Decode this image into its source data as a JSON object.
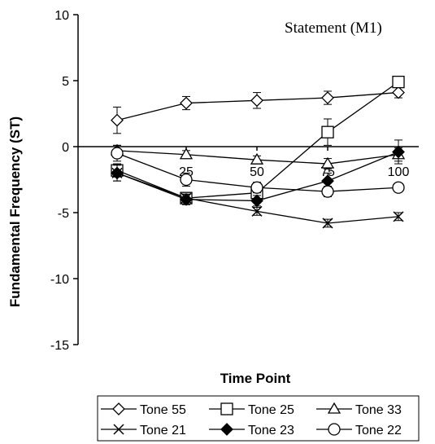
{
  "chart_data": {
    "type": "line",
    "annotation": "Statement (M1)",
    "xlabel": "Time Point",
    "ylabel": "Fundamental Frequency (ST)",
    "x": [
      0,
      25,
      50,
      75,
      100
    ],
    "x_tick_labels": [
      "25",
      "50",
      "75",
      "100"
    ],
    "x_tick_values": [
      25,
      50,
      75,
      100
    ],
    "ylim": [
      -15,
      10
    ],
    "y_ticks": [
      10,
      5,
      0,
      -5,
      -10,
      -15
    ],
    "y_tick_labels": [
      "10",
      "5",
      "0",
      "-5",
      "-10",
      "-15"
    ],
    "grid": false,
    "error_bars": true,
    "legend_position": "bottom",
    "series": [
      {
        "name": "Tone 55",
        "marker": "diamond-open",
        "values": [
          2.0,
          3.3,
          3.5,
          3.7,
          4.1
        ],
        "errors": [
          1.0,
          0.5,
          0.6,
          0.5,
          0.4
        ]
      },
      {
        "name": "Tone 25",
        "marker": "square-open",
        "values": [
          -1.8,
          -3.9,
          -3.5,
          1.1,
          4.9
        ],
        "errors": [
          0.5,
          0.4,
          0.5,
          1.0,
          0.3
        ]
      },
      {
        "name": "Tone 33",
        "marker": "triangle-open",
        "values": [
          -0.3,
          -0.6,
          -1.0,
          -1.3,
          -0.6
        ],
        "errors": [
          0.4,
          0.3,
          0.3,
          0.4,
          0.5
        ]
      },
      {
        "name": "Tone 21",
        "marker": "x",
        "values": [
          -2.0,
          -3.9,
          -4.9,
          -5.8,
          -5.3
        ],
        "errors": [
          0.6,
          0.3,
          0.3,
          0.3,
          0.3
        ]
      },
      {
        "name": "Tone 23",
        "marker": "diamond-filled",
        "values": [
          -2.0,
          -4.0,
          -4.1,
          -2.6,
          -0.4
        ],
        "errors": [
          0.6,
          0.4,
          0.4,
          0.6,
          0.9
        ]
      },
      {
        "name": "Tone 22",
        "marker": "circle-open",
        "values": [
          -0.5,
          -2.5,
          -3.1,
          -3.4,
          -3.1
        ],
        "errors": [
          0.6,
          0.5,
          0.4,
          0.4,
          0.3
        ]
      }
    ]
  }
}
